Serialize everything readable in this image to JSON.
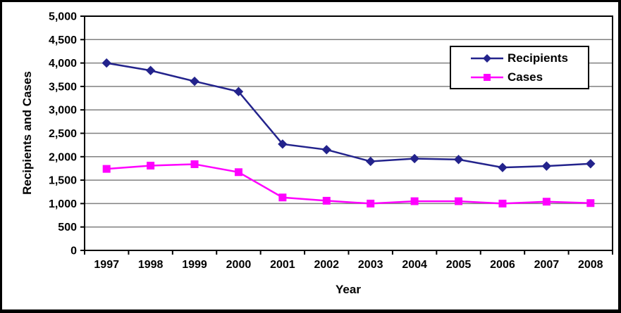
{
  "window": {
    "background": "#ffffff",
    "frame_color": "#000000"
  },
  "chart_data": {
    "type": "line",
    "title": "",
    "xlabel": "Year",
    "ylabel": "Recipients and Cases",
    "categories": [
      "1997",
      "1998",
      "1999",
      "2000",
      "2001",
      "2002",
      "2003",
      "2004",
      "2005",
      "2006",
      "2007",
      "2008"
    ],
    "series": [
      {
        "name": "Recipients",
        "color": "#23238c",
        "marker": "diamond",
        "values": [
          4000,
          3840,
          3610,
          3390,
          2270,
          2150,
          1900,
          1960,
          1940,
          1770,
          1800,
          1850
        ]
      },
      {
        "name": "Cases",
        "color": "#ff00ff",
        "marker": "square",
        "values": [
          1740,
          1810,
          1840,
          1670,
          1130,
          1060,
          1000,
          1050,
          1050,
          1000,
          1040,
          1010
        ]
      }
    ],
    "ylim": [
      0,
      5000
    ],
    "ytick_step": 500,
    "ytick_labels": [
      "0",
      "500",
      "1,000",
      "1,500",
      "2,000",
      "2,500",
      "3,000",
      "3,500",
      "4,000",
      "4,500",
      "5,000"
    ],
    "grid": true,
    "gridline_color": "#808080",
    "axis_color": "#000000",
    "legend_position": "top-right",
    "legend_labels": [
      "Recipients",
      "Cases"
    ]
  }
}
